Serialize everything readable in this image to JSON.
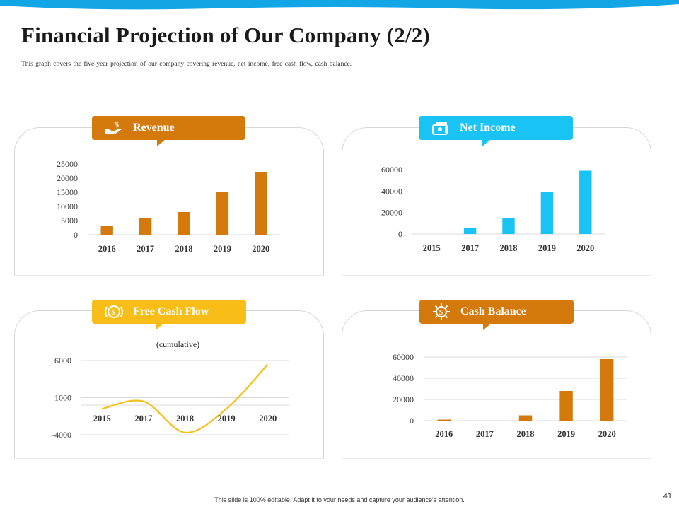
{
  "page": {
    "title": "Financial Projection of Our Company (2/2)",
    "subtitle": "This graph covers  the five-year  projection  of our company covering  revenue,  net income, free cash flow, cash  balance.",
    "footer": "This slide is 100% editable.  Adapt it to your needs and capture your audience's attention.",
    "page_number": "41"
  },
  "colors": {
    "orange": "#D4790C",
    "cyan": "#19C3F3",
    "yellow": "#F8BE17",
    "wave": "#12A6E6",
    "grid": "#d9d9d9"
  },
  "panels": {
    "revenue": {
      "label": "Revenue",
      "icon": "hand-money-icon"
    },
    "net_income": {
      "label": "Net Income",
      "icon": "cash-stack-icon"
    },
    "free_cash_flow": {
      "label": "Free Cash Flow",
      "icon": "coin-icon"
    },
    "cash_balance": {
      "label": "Cash Balance",
      "icon": "dollar-gear-icon"
    }
  },
  "chart_data": [
    {
      "id": "revenue",
      "type": "bar",
      "title": "Revenue",
      "categories": [
        "2016",
        "2017",
        "2018",
        "2019",
        "2020"
      ],
      "values": [
        3000,
        6000,
        8000,
        15000,
        22000
      ],
      "ylim": [
        0,
        25000
      ],
      "yticks": [
        "0",
        "5000",
        "10000",
        "15000",
        "20000",
        "25000"
      ],
      "color": "#D4790C",
      "grid": false
    },
    {
      "id": "net_income",
      "type": "bar",
      "title": "Net Income",
      "categories": [
        "2015",
        "2017",
        "2018",
        "2019",
        "2020"
      ],
      "values": [
        0,
        6000,
        15000,
        39000,
        59000
      ],
      "ylim": [
        0,
        60000
      ],
      "yticks": [
        "0",
        "20000",
        "40000",
        "60000"
      ],
      "color": "#19C3F3",
      "grid": false
    },
    {
      "id": "free_cash_flow",
      "type": "line",
      "title": "Free Cash Flow",
      "annotation": "(cumulative)",
      "categories": [
        "2015",
        "2017",
        "2018",
        "2019",
        "2020"
      ],
      "values": [
        -500,
        500,
        -3700,
        -500,
        5500
      ],
      "ylim": [
        -4000,
        6000
      ],
      "yticks": [
        "-4000",
        "1000",
        "6000"
      ],
      "color": "#F8BE17",
      "grid": true
    },
    {
      "id": "cash_balance",
      "type": "bar",
      "title": "Cash Balance",
      "categories": [
        "2016",
        "2017",
        "2018",
        "2019",
        "2020"
      ],
      "values": [
        1000,
        0,
        5000,
        28000,
        58000
      ],
      "ylim": [
        0,
        60000
      ],
      "yticks": [
        "0",
        "20000",
        "40000",
        "60000"
      ],
      "color": "#D4790C",
      "grid": true
    }
  ]
}
